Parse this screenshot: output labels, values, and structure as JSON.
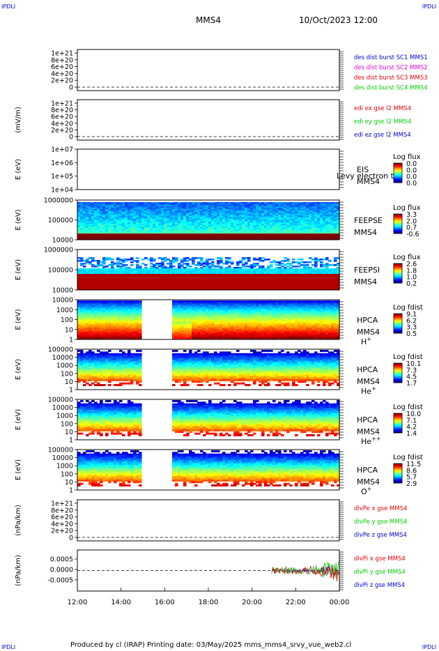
{
  "corner_labels": {
    "tl": "IPDLI",
    "tr": "IPDLI",
    "bl": "IPDLI",
    "br": "IPDLI"
  },
  "header": {
    "spacecraft": "MMS4",
    "date": "10/Oct/2023 12:00"
  },
  "footer": "Produced by cl (IRAP)   Printing date: 03/May/2025   mms_mms4_srvy_vue_web2.cl",
  "colors": {
    "red": "#dd0000",
    "magenta": "#dd00dd",
    "green": "#00cc00",
    "blue": "#0000cc",
    "black": "#000000"
  },
  "panels": [
    {
      "id": "p1",
      "kind": "empty",
      "ylabel": "",
      "yticks": [
        "1e+21",
        "8e+20",
        "6e+20",
        "4e+20",
        "2e+20",
        "0"
      ],
      "legend": [
        {
          "text": "des dist burst SC1 MMS1",
          "color": "blue"
        },
        {
          "text": "des dist burst SC2 MMS2",
          "color": "magenta"
        },
        {
          "text": "des dist burst SC3 MMS3",
          "color": "red"
        },
        {
          "text": "des dist burst SC4 MMS4",
          "color": "green"
        }
      ]
    },
    {
      "id": "p2",
      "kind": "empty",
      "ylabel": "(mV/m)",
      "yticks": [
        "1e+21",
        "8e+20",
        "6e+20",
        "4e+20",
        "2e+20",
        "0"
      ],
      "legend": [
        {
          "text": "edi ex gse l2 MMS4",
          "color": "red"
        },
        {
          "text": "edi ey gse l2 MMS4",
          "color": "green"
        },
        {
          "text": "edi ez gse l2 MMS4",
          "color": "blue"
        }
      ]
    },
    {
      "id": "p3",
      "kind": "empty_log",
      "ylabel": "E (eV)",
      "yticks": [
        "1e+07",
        "1e+06",
        "1e+05",
        "1e+04"
      ],
      "inst": [
        "EIS",
        "MMS4"
      ],
      "overlay": "Levy electron to",
      "cbar": {
        "title": "Log flux",
        "ticks": [
          "0.0",
          "0.0",
          "0.0",
          "0.0"
        ]
      }
    },
    {
      "id": "p4",
      "kind": "spec",
      "ylabel": "E (eV)",
      "yticks": [
        "1000000",
        "100000",
        "10000"
      ],
      "inst": [
        "FEEPSE",
        "MMS4"
      ],
      "cbar": {
        "title": "Log flux",
        "ticks": [
          "3.3",
          "2.0",
          "0.7",
          "-0.6"
        ]
      }
    },
    {
      "id": "p5",
      "kind": "spec",
      "ylabel": "E (eV)",
      "yticks": [
        "1000000",
        "100000",
        "10000"
      ],
      "inst": [
        "FEEPSI",
        "MMS4"
      ],
      "cbar": {
        "title": "Log flux",
        "ticks": [
          "2.6",
          "1.8",
          "1.0",
          "0.2"
        ]
      }
    },
    {
      "id": "p6",
      "kind": "spec",
      "ylabel": "E (eV)",
      "yticks": [
        "10000",
        "1000",
        "100",
        "10",
        "1"
      ],
      "inst": [
        "HPCA",
        "MMS4"
      ],
      "species": "H",
      "charge": "+",
      "cbar": {
        "title": "Log fdist",
        "ticks": [
          "9.1",
          "6.2",
          "3.3",
          "0.5"
        ]
      }
    },
    {
      "id": "p7",
      "kind": "spec",
      "ylabel": "E (eV)",
      "yticks": [
        "100000",
        "10000",
        "1000",
        "100",
        "10",
        "1"
      ],
      "inst": [
        "HPCA",
        "MMS4"
      ],
      "species": "He",
      "charge": "+",
      "cbar": {
        "title": "Log fdist",
        "ticks": [
          "10.1",
          "7.3",
          "4.5",
          "1.7"
        ]
      }
    },
    {
      "id": "p8",
      "kind": "spec",
      "ylabel": "E (eV)",
      "yticks": [
        "100000",
        "10000",
        "1000",
        "100",
        "10",
        "1"
      ],
      "inst": [
        "HPCA",
        "MMS4"
      ],
      "species": "He",
      "charge": "++",
      "cbar": {
        "title": "Log fdist",
        "ticks": [
          "10.0",
          "7.1",
          "4.2",
          "1.4"
        ]
      }
    },
    {
      "id": "p9",
      "kind": "spec",
      "ylabel": "E (eV)",
      "yticks": [
        "100000",
        "10000",
        "1000",
        "100",
        "10",
        "1"
      ],
      "inst": [
        "HPCA",
        "MMS4"
      ],
      "species": "O",
      "charge": "+",
      "cbar": {
        "title": "Log fdist",
        "ticks": [
          "11.5",
          "8.6",
          "5.7",
          "2.9"
        ]
      }
    },
    {
      "id": "p10",
      "kind": "empty",
      "ylabel": "(nPa/km)",
      "yticks": [
        "1e+21",
        "8e+20",
        "6e+20",
        "4e+20",
        "2e+20",
        "0"
      ],
      "legend": [
        {
          "text": "divPe x gse MMS4",
          "color": "red"
        },
        {
          "text": "divPe y gse MMS4",
          "color": "green"
        },
        {
          "text": "divPe z gse MMS4",
          "color": "blue"
        }
      ]
    },
    {
      "id": "p11",
      "kind": "line",
      "ylabel": "(nPa/km)",
      "yticks": [
        "0.0005",
        "0.0000",
        "-0.0005"
      ],
      "legend": [
        {
          "text": "divPi x gse MMS4",
          "color": "red"
        },
        {
          "text": "divPi y gse MMS4",
          "color": "green"
        },
        {
          "text": "divPi z gse MMS4",
          "color": "blue"
        }
      ]
    }
  ],
  "chart_data": {
    "type": "heatmap",
    "title": "MMS4",
    "time_axis": {
      "ticks": [
        "12:00",
        "14:00",
        "16:00",
        "18:00",
        "20:00",
        "22:00",
        "00:00"
      ],
      "range_hours": [
        12,
        24
      ]
    },
    "hpca_data_gap_hours": [
      15.0,
      16.4
    ],
    "divPi_data_start_hours": 20.9,
    "divPi_ylim": [
      -0.0008,
      0.0008
    ]
  }
}
